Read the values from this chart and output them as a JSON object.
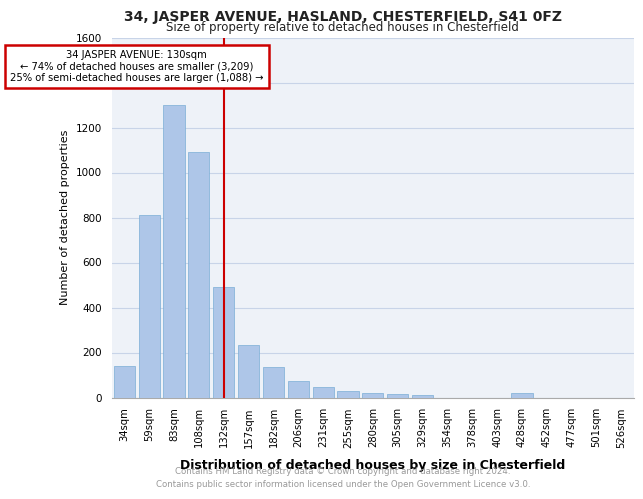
{
  "title_line1": "34, JASPER AVENUE, HASLAND, CHESTERFIELD, S41 0FZ",
  "title_line2": "Size of property relative to detached houses in Chesterfield",
  "xlabel": "Distribution of detached houses by size in Chesterfield",
  "ylabel": "Number of detached properties",
  "categories": [
    "34sqm",
    "59sqm",
    "83sqm",
    "108sqm",
    "132sqm",
    "157sqm",
    "182sqm",
    "206sqm",
    "231sqm",
    "255sqm",
    "280sqm",
    "305sqm",
    "329sqm",
    "354sqm",
    "378sqm",
    "403sqm",
    "428sqm",
    "452sqm",
    "477sqm",
    "501sqm",
    "526sqm"
  ],
  "values": [
    140,
    810,
    1300,
    1090,
    490,
    235,
    135,
    75,
    45,
    30,
    20,
    15,
    10,
    0,
    0,
    0,
    20,
    0,
    0,
    0,
    0
  ],
  "bar_color": "#aec6e8",
  "bar_edge_color": "#7aaed6",
  "property_line_index": 4,
  "annotation_line1": "34 JASPER AVENUE: 130sqm",
  "annotation_line2": "← 74% of detached houses are smaller (3,209)",
  "annotation_line3": "25% of semi-detached houses are larger (1,088) →",
  "red_line_color": "#cc0000",
  "annotation_box_color": "#cc0000",
  "grid_color": "#c8d4e8",
  "background_color": "#eef2f8",
  "footer_line1": "Contains HM Land Registry data © Crown copyright and database right 2024.",
  "footer_line2": "Contains public sector information licensed under the Open Government Licence v3.0.",
  "ylim": [
    0,
    1600
  ],
  "yticks": [
    0,
    200,
    400,
    600,
    800,
    1000,
    1200,
    1400,
    1600
  ]
}
